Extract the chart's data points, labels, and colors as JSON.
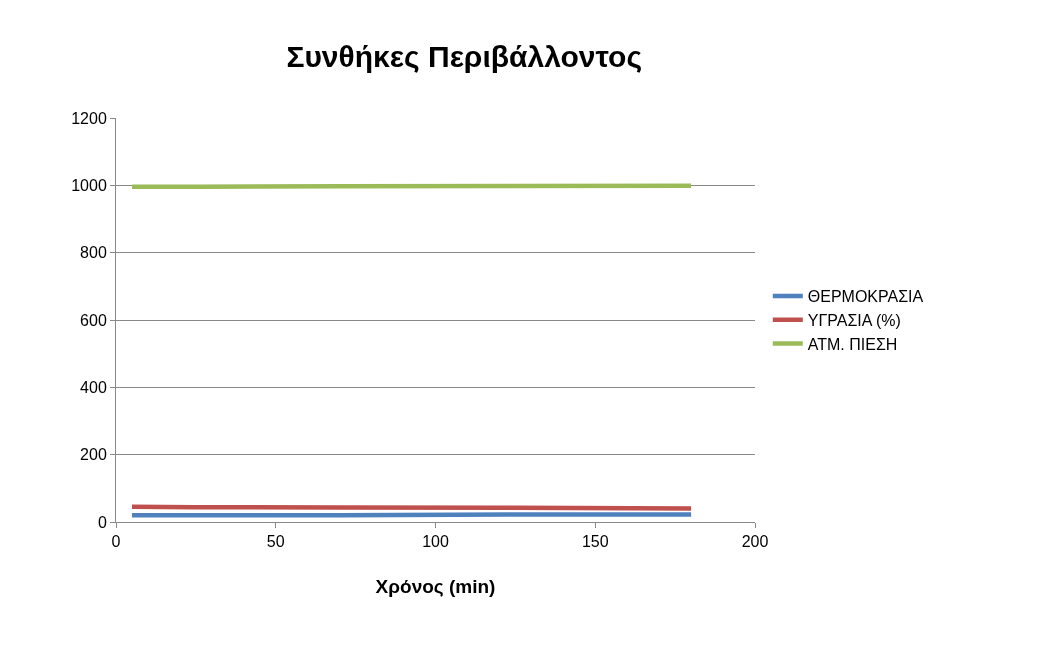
{
  "chart_data": {
    "type": "line",
    "title": "Συνθήκες Περιβάλλοντος",
    "xlabel": "Χρόνος (min)",
    "x": [
      5,
      25,
      70,
      125,
      180
    ],
    "series": [
      {
        "name": "ΘΕΡΜΟΚΡΑΣΙΑ",
        "color": "#4f81bd",
        "values": [
          20,
          20,
          20,
          22,
          22
        ]
      },
      {
        "name": "ΥΓΡΑΣΙΑ (%)",
        "color": "#c0504d",
        "values": [
          45,
          44,
          43,
          42,
          40
        ]
      },
      {
        "name": "ΑΤΜ. ΠΙΕΣΗ",
        "color": "#9bbb59",
        "values": [
          996,
          996,
          997,
          998,
          999
        ]
      }
    ],
    "xlim": [
      0,
      200
    ],
    "xticks": [
      0,
      50,
      100,
      150,
      200
    ],
    "ylim": [
      0,
      1200
    ],
    "yticks": [
      0,
      200,
      400,
      600,
      800,
      1000,
      1200
    ],
    "grid": "y",
    "legend": "right",
    "marker": "none",
    "line_style": "solid"
  }
}
